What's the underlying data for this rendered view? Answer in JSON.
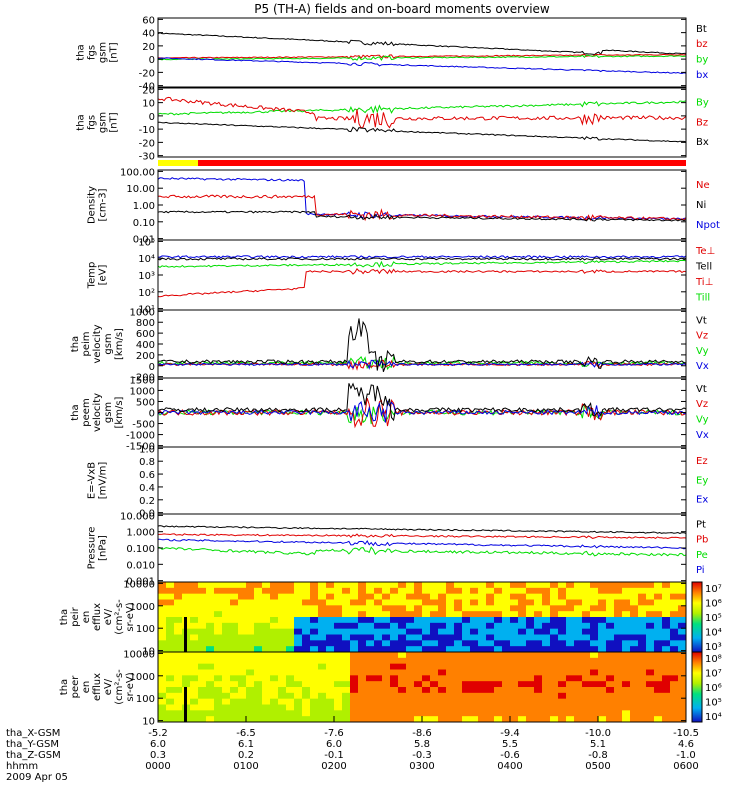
{
  "title": "P5 (TH-A) fields and on-board moments overview",
  "colors": {
    "black": "#000000",
    "red": "#e00000",
    "green": "#00dd00",
    "blue": "#0000e0",
    "yellow": "#ffff00",
    "barred": "#ff0000"
  },
  "panels": [
    {
      "id": "p1",
      "ylabel": [
        "tha",
        "fgs",
        "gsm",
        "[nT]"
      ],
      "ticks": [
        "60",
        "40",
        "20",
        "0",
        "-20",
        "-40"
      ],
      "legend": [
        {
          "t": "Bt",
          "c": "black"
        },
        {
          "t": "bz",
          "c": "red"
        },
        {
          "t": "by",
          "c": "green"
        },
        {
          "t": "bx",
          "c": "blue"
        }
      ]
    },
    {
      "id": "p2",
      "ylabel": [
        "tha",
        "fgs",
        "gsm",
        "[nT]"
      ],
      "ticks": [
        "20",
        "10",
        "0",
        "-10",
        "-20",
        "-30"
      ],
      "legend": [
        {
          "t": "By",
          "c": "green"
        },
        {
          "t": "Bz",
          "c": "red"
        },
        {
          "t": "Bx",
          "c": "black"
        }
      ]
    },
    {
      "id": "p3",
      "ylabel": [
        "Density",
        "[cm-3]"
      ],
      "ticks": [
        "100.00",
        "10.00",
        "1.00",
        "0.10",
        "0.01"
      ],
      "legend": [
        {
          "t": "Ne",
          "c": "red"
        },
        {
          "t": "Ni",
          "c": "black"
        },
        {
          "t": "Npot",
          "c": "blue"
        }
      ]
    },
    {
      "id": "p4",
      "ylabel": [
        "Temp",
        "[eV]"
      ],
      "ticks": [
        "10⁵",
        "10⁴",
        "10³",
        "10²",
        "10¹"
      ],
      "legend": [
        {
          "t": "Te⊥",
          "c": "red"
        },
        {
          "t": "Tell",
          "c": "black"
        },
        {
          "t": "Ti⊥",
          "c": "red"
        },
        {
          "t": "Till",
          "c": "green"
        }
      ]
    },
    {
      "id": "p5",
      "ylabel": [
        "tha",
        "peim",
        "velocity",
        "gsm",
        "[km/s]"
      ],
      "ticks": [
        "1000",
        "800",
        "600",
        "400",
        "200",
        "0",
        "-200"
      ],
      "legend": [
        {
          "t": "Vt",
          "c": "black"
        },
        {
          "t": "Vz",
          "c": "red"
        },
        {
          "t": "Vy",
          "c": "green"
        },
        {
          "t": "Vx",
          "c": "blue"
        }
      ]
    },
    {
      "id": "p6",
      "ylabel": [
        "tha",
        "peem",
        "velocity",
        "gsm",
        "[km/s]"
      ],
      "ticks": [
        "1500",
        "1000",
        "500",
        "0",
        "-500",
        "-1000",
        "-1500"
      ],
      "legend": [
        {
          "t": "Vt",
          "c": "black"
        },
        {
          "t": "Vz",
          "c": "red"
        },
        {
          "t": "Vy",
          "c": "green"
        },
        {
          "t": "Vx",
          "c": "blue"
        }
      ]
    },
    {
      "id": "p7",
      "ylabel": [
        "E=-VxB",
        "[mV/m]"
      ],
      "ticks": [
        "1.0",
        "0.8",
        "0.6",
        "0.4",
        "0.2",
        "0.0"
      ],
      "legend": [
        {
          "t": "Ez",
          "c": "red"
        },
        {
          "t": "Ey",
          "c": "green"
        },
        {
          "t": "Ex",
          "c": "blue"
        }
      ]
    },
    {
      "id": "p8",
      "ylabel": [
        "Pressure",
        "[nPa]"
      ],
      "ticks": [
        "10.000",
        "1.000",
        "0.100",
        "0.010",
        "0.001"
      ],
      "legend": [
        {
          "t": "Pt",
          "c": "black"
        },
        {
          "t": "Pb",
          "c": "red"
        },
        {
          "t": "Pe",
          "c": "green"
        },
        {
          "t": "Pi",
          "c": "blue"
        }
      ]
    },
    {
      "id": "p9",
      "ylabel": [
        "tha",
        "peir",
        "en",
        "efflux",
        "eV/",
        "(cm²-s-",
        "sr-eV)"
      ],
      "ticks": [
        "10000",
        "1000",
        "100",
        "10"
      ],
      "colorbar": [
        "10⁷",
        "10⁶",
        "10⁵",
        "10⁴",
        "10³"
      ]
    },
    {
      "id": "p10",
      "ylabel": [
        "tha",
        "peer",
        "en",
        "efflux",
        "eV/",
        "(cm²-s-",
        "sr-eV)"
      ],
      "ticks": [
        "10000",
        "1000",
        "100",
        "10"
      ],
      "colorbar": [
        "10⁸",
        "10⁷",
        "10⁶",
        "10⁵",
        "10⁴"
      ]
    }
  ],
  "xaxis": {
    "labels": [
      "tha_X-GSM",
      "tha_Y-GSM",
      "tha_Z-GSM",
      "hhmm",
      "2009 Apr 05"
    ],
    "cols": [
      [
        "-5.2",
        "6.0",
        "0.3",
        "0000"
      ],
      [
        "-6.5",
        "6.1",
        "0.2",
        "0100"
      ],
      [
        "-7.6",
        "6.0",
        "-0.1",
        "0200"
      ],
      [
        "-8.6",
        "5.8",
        "-0.3",
        "0300"
      ],
      [
        "-9.4",
        "5.5",
        "-0.6",
        "0400"
      ],
      [
        "-10.0",
        "5.1",
        "-0.8",
        "0500"
      ],
      [
        "-10.5",
        "4.6",
        "-1.0",
        "0600"
      ]
    ]
  },
  "chart_data": {
    "type": "line",
    "title": "P5 (TH-A) fields and on-board moments overview",
    "x_range_hhmm": [
      "0000",
      "0600"
    ],
    "series_samples": {
      "Bt_nT": [
        {
          "x": "0000",
          "y": 42
        },
        {
          "x": "0100",
          "y": 30
        },
        {
          "x": "0200",
          "y": 22
        },
        {
          "x": "0220",
          "y": 25
        },
        {
          "x": "0300",
          "y": 15
        },
        {
          "x": "0400",
          "y": 14
        },
        {
          "x": "0500",
          "y": 20
        },
        {
          "x": "0600",
          "y": 22
        }
      ],
      "Density_Npot": [
        {
          "x": "0000",
          "y": 30
        },
        {
          "x": "0100",
          "y": 20
        },
        {
          "x": "0200",
          "y": 0.8
        },
        {
          "x": "0300",
          "y": 0.5
        },
        {
          "x": "0600",
          "y": 0.3
        }
      ],
      "Pressure_Pt": [
        {
          "x": "0000",
          "y": 1.2
        },
        {
          "x": "0200",
          "y": 0.6
        },
        {
          "x": "0400",
          "y": 0.4
        },
        {
          "x": "0600",
          "y": 0.5
        }
      ]
    }
  }
}
